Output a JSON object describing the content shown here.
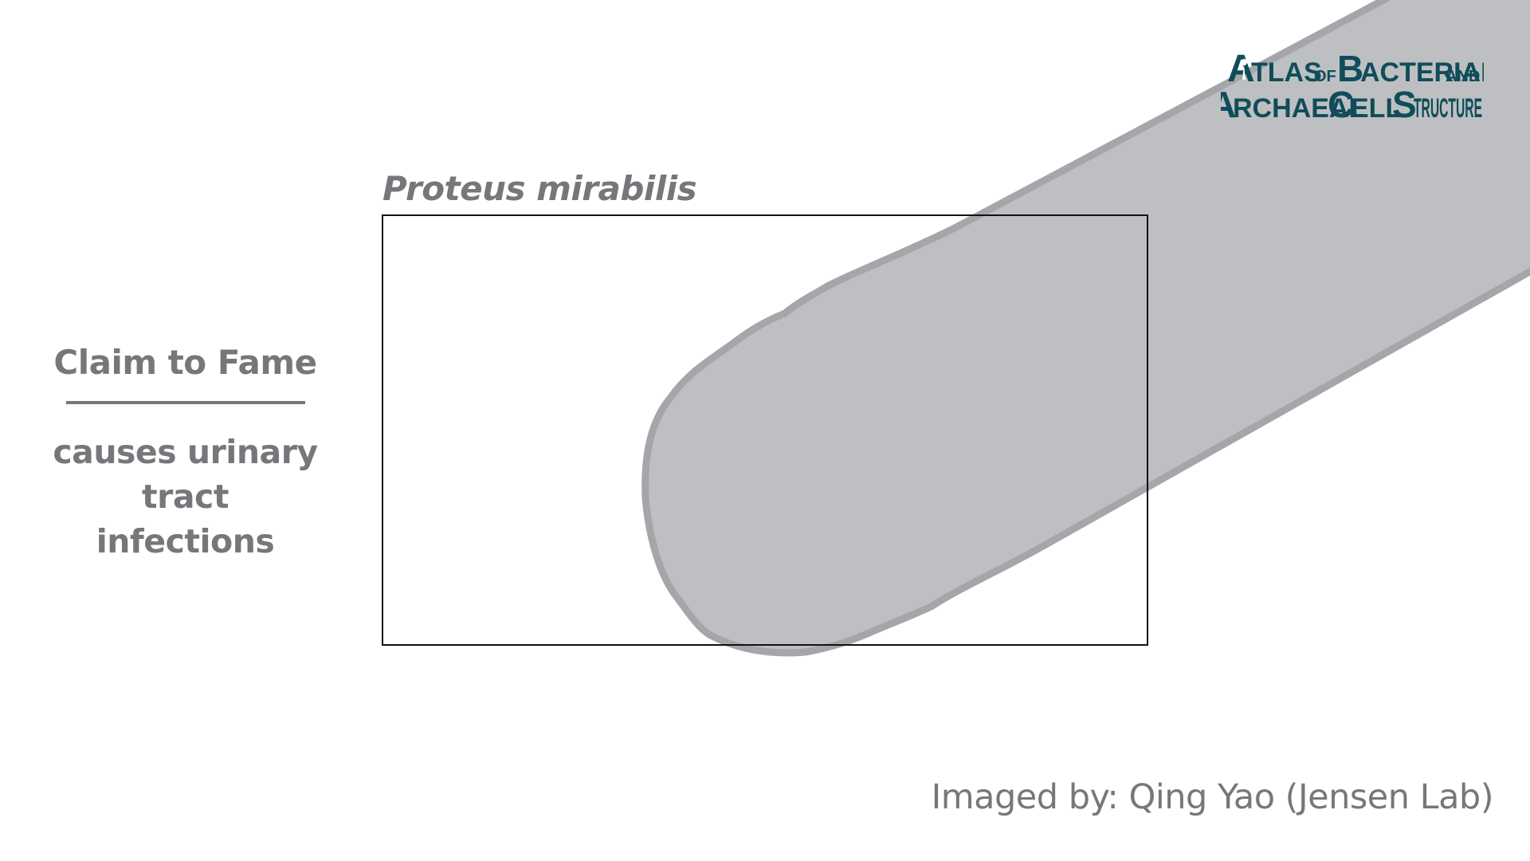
{
  "logo": {
    "line1_big1": "A",
    "line1_rest1": "TLAS",
    "line1_small": "OF",
    "line1_big2": "B",
    "line1_rest2": "ACTERIAL",
    "line1_and": "AND",
    "line2_big1": "A",
    "line2_rest1": "RCHAEAL",
    "line2_big2": "C",
    "line2_rest2": "ELL",
    "line2_big3": "S",
    "line2_rest3": "TRUCTURE",
    "color": "#0f4d5a"
  },
  "species_name": "Proteus mirabilis",
  "claim": {
    "heading": "Claim to Fame",
    "line1": "causes urinary",
    "line2": "tract infections"
  },
  "credit": "Imaged by: Qing Yao (Jensen Lab)",
  "colors": {
    "text_gray": "#77777b",
    "cell_fill": "#bebfc2",
    "cell_outline": "#a6a6aa",
    "frame": "#111111"
  }
}
